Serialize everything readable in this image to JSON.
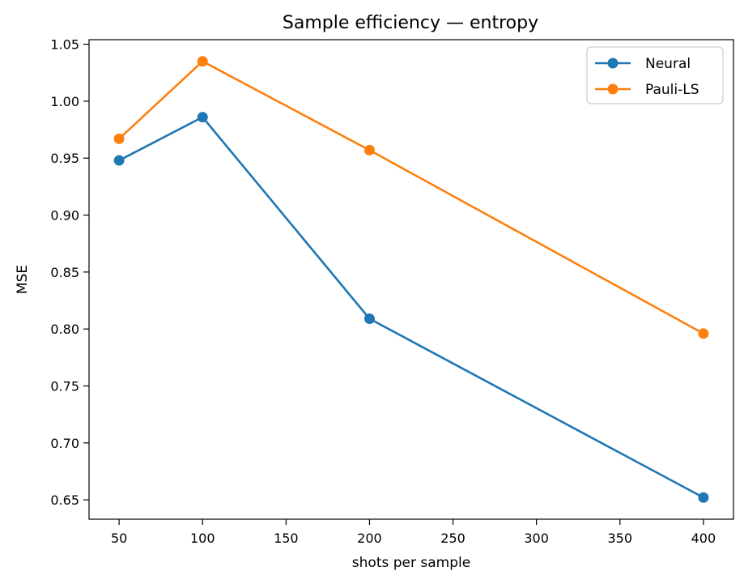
{
  "chart_data": {
    "type": "line",
    "title": "Sample efficiency — entropy",
    "xlabel": "shots per sample",
    "ylabel": "MSE",
    "x": [
      50,
      100,
      200,
      400
    ],
    "xlim": [
      32,
      418
    ],
    "ylim": [
      0.633,
      1.054
    ],
    "xticks": [
      50,
      100,
      150,
      200,
      250,
      300,
      350,
      400
    ],
    "yticks": [
      0.65,
      0.7,
      0.75,
      0.8,
      0.85,
      0.9,
      0.95,
      1.0,
      1.05
    ],
    "xtick_labels": [
      "50",
      "100",
      "150",
      "200",
      "250",
      "300",
      "350",
      "400"
    ],
    "ytick_labels": [
      "0.65",
      "0.70",
      "0.75",
      "0.80",
      "0.85",
      "0.90",
      "0.95",
      "1.00",
      "1.05"
    ],
    "grid": false,
    "legend": "top-right",
    "series": [
      {
        "name": "Neural",
        "color": "#1f77b4",
        "values": [
          0.948,
          0.986,
          0.809,
          0.652
        ]
      },
      {
        "name": "Pauli-LS",
        "color": "#ff7f0e",
        "values": [
          0.967,
          1.035,
          0.957,
          0.796
        ]
      }
    ]
  }
}
